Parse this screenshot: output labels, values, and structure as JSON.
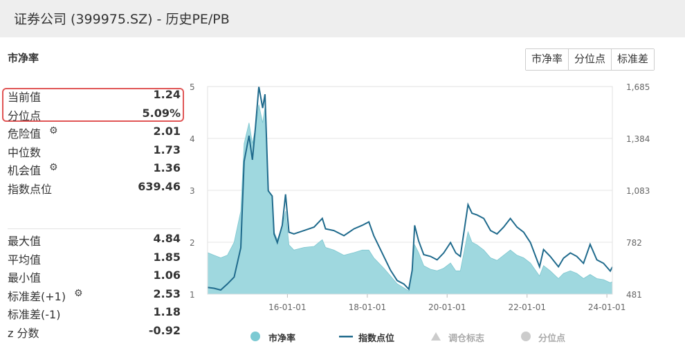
{
  "window_title": "证券公司 (399975.SZ) - 历史PE/PB",
  "section_title": "市净率",
  "tabs": [
    "市净率",
    "分位点",
    "标准差"
  ],
  "stats_top": [
    {
      "label": "当前值",
      "value": "1.24",
      "gear": false
    },
    {
      "label": "分位点",
      "value": "5.09%",
      "gear": false
    },
    {
      "label": "危险值",
      "value": "2.01",
      "gear": true
    },
    {
      "label": "中位数",
      "value": "1.73",
      "gear": false
    },
    {
      "label": "机会值",
      "value": "1.36",
      "gear": true
    },
    {
      "label": "指数点位",
      "value": "639.46",
      "gear": false
    }
  ],
  "stats_bottom": [
    {
      "label": "最大值",
      "value": "4.84",
      "gear": false
    },
    {
      "label": "平均值",
      "value": "1.85",
      "gear": false
    },
    {
      "label": "最小值",
      "value": "1.06",
      "gear": false
    },
    {
      "label": "标准差(+1)",
      "value": "2.53",
      "gear": true
    },
    {
      "label": "标准差(-1)",
      "value": "1.18",
      "gear": false
    },
    {
      "label": "z 分数",
      "value": "-0.92",
      "gear": false
    }
  ],
  "chart_data": {
    "type": "area",
    "x_tick_labels": [
      "16-01-01",
      "18-01-01",
      "20-01-01",
      "22-01-01",
      "24-01-01"
    ],
    "y_left_ticks": [
      1,
      2,
      3,
      4,
      5
    ],
    "y_right_ticks": [
      "481",
      "782",
      "1,083",
      "1,384",
      "1,685"
    ],
    "y_left_range": [
      1,
      5
    ],
    "y_right_range": [
      481,
      1685
    ],
    "x_range": [
      "2014-01-01",
      "2024-02-20"
    ],
    "legend": [
      "市净率",
      "指数点位",
      "调仓标志",
      "分位点"
    ],
    "colors": {
      "pb_fill": "#9fd8df",
      "index_line": "#1f6a8c",
      "inactive": "#cccccc"
    },
    "series": [
      {
        "name": "市净率",
        "points": [
          [
            "2014-01-01",
            1.8
          ],
          [
            "2014-03-01",
            1.75
          ],
          [
            "2014-05-01",
            1.7
          ],
          [
            "2014-07-01",
            1.75
          ],
          [
            "2014-09-01",
            2.0
          ],
          [
            "2014-11-01",
            2.6
          ],
          [
            "2014-12-01",
            3.9
          ],
          [
            "2015-01-15",
            4.3
          ],
          [
            "2015-02-15",
            3.9
          ],
          [
            "2015-03-15",
            4.2
          ],
          [
            "2015-04-15",
            4.65
          ],
          [
            "2015-05-20",
            4.3
          ],
          [
            "2015-06-10",
            4.6
          ],
          [
            "2015-07-10",
            3.0
          ],
          [
            "2015-08-15",
            2.9
          ],
          [
            "2015-09-01",
            2.2
          ],
          [
            "2015-10-01",
            2.05
          ],
          [
            "2015-11-15",
            2.3
          ],
          [
            "2015-12-15",
            2.6
          ],
          [
            "2016-01-15",
            1.95
          ],
          [
            "2016-03-01",
            1.85
          ],
          [
            "2016-06-01",
            1.9
          ],
          [
            "2016-09-01",
            1.92
          ],
          [
            "2016-11-15",
            2.05
          ],
          [
            "2016-12-15",
            1.9
          ],
          [
            "2017-03-01",
            1.85
          ],
          [
            "2017-06-01",
            1.75
          ],
          [
            "2017-09-01",
            1.8
          ],
          [
            "2017-11-15",
            1.85
          ],
          [
            "2018-01-15",
            1.85
          ],
          [
            "2018-03-01",
            1.7
          ],
          [
            "2018-06-01",
            1.5
          ],
          [
            "2018-08-01",
            1.35
          ],
          [
            "2018-10-01",
            1.2
          ],
          [
            "2018-12-01",
            1.12
          ],
          [
            "2019-01-15",
            1.06
          ],
          [
            "2019-02-15",
            1.5
          ],
          [
            "2019-03-10",
            1.95
          ],
          [
            "2019-04-15",
            1.8
          ],
          [
            "2019-06-01",
            1.55
          ],
          [
            "2019-08-01",
            1.48
          ],
          [
            "2019-10-01",
            1.45
          ],
          [
            "2019-12-01",
            1.5
          ],
          [
            "2020-02-01",
            1.6
          ],
          [
            "2020-03-20",
            1.45
          ],
          [
            "2020-05-01",
            1.45
          ],
          [
            "2020-07-10",
            2.2
          ],
          [
            "2020-08-15",
            2.0
          ],
          [
            "2020-10-01",
            1.95
          ],
          [
            "2020-12-01",
            1.85
          ],
          [
            "2021-02-01",
            1.7
          ],
          [
            "2021-04-01",
            1.65
          ],
          [
            "2021-06-01",
            1.75
          ],
          [
            "2021-08-01",
            1.85
          ],
          [
            "2021-10-01",
            1.75
          ],
          [
            "2021-12-01",
            1.7
          ],
          [
            "2022-02-01",
            1.6
          ],
          [
            "2022-04-25",
            1.35
          ],
          [
            "2022-06-01",
            1.55
          ],
          [
            "2022-08-01",
            1.45
          ],
          [
            "2022-10-15",
            1.3
          ],
          [
            "2022-12-01",
            1.4
          ],
          [
            "2023-02-01",
            1.45
          ],
          [
            "2023-04-01",
            1.4
          ],
          [
            "2023-06-01",
            1.3
          ],
          [
            "2023-08-01",
            1.38
          ],
          [
            "2023-10-01",
            1.3
          ],
          [
            "2023-12-01",
            1.28
          ],
          [
            "2024-02-01",
            1.22
          ],
          [
            "2024-02-20",
            1.24
          ]
        ]
      },
      {
        "name": "指数点位",
        "points": [
          [
            "2014-01-01",
            520
          ],
          [
            "2014-03-01",
            515
          ],
          [
            "2014-05-01",
            505
          ],
          [
            "2014-07-01",
            540
          ],
          [
            "2014-09-01",
            580
          ],
          [
            "2014-11-01",
            750
          ],
          [
            "2014-12-01",
            1250
          ],
          [
            "2015-01-15",
            1400
          ],
          [
            "2015-02-15",
            1260
          ],
          [
            "2015-03-15",
            1450
          ],
          [
            "2015-04-15",
            1685
          ],
          [
            "2015-05-20",
            1560
          ],
          [
            "2015-06-10",
            1640
          ],
          [
            "2015-07-10",
            1080
          ],
          [
            "2015-08-15",
            1050
          ],
          [
            "2015-09-01",
            830
          ],
          [
            "2015-10-01",
            780
          ],
          [
            "2015-11-15",
            880
          ],
          [
            "2015-12-15",
            1060
          ],
          [
            "2016-01-15",
            840
          ],
          [
            "2016-03-01",
            830
          ],
          [
            "2016-06-01",
            850
          ],
          [
            "2016-09-01",
            870
          ],
          [
            "2016-11-15",
            920
          ],
          [
            "2016-12-15",
            860
          ],
          [
            "2017-03-01",
            850
          ],
          [
            "2017-06-01",
            820
          ],
          [
            "2017-09-01",
            860
          ],
          [
            "2017-11-15",
            880
          ],
          [
            "2018-01-15",
            900
          ],
          [
            "2018-03-01",
            820
          ],
          [
            "2018-06-01",
            700
          ],
          [
            "2018-08-01",
            620
          ],
          [
            "2018-10-01",
            560
          ],
          [
            "2018-12-01",
            540
          ],
          [
            "2019-01-15",
            510
          ],
          [
            "2019-02-15",
            620
          ],
          [
            "2019-03-10",
            880
          ],
          [
            "2019-04-15",
            790
          ],
          [
            "2019-06-01",
            710
          ],
          [
            "2019-08-01",
            700
          ],
          [
            "2019-10-01",
            680
          ],
          [
            "2019-12-01",
            720
          ],
          [
            "2020-02-01",
            780
          ],
          [
            "2020-03-20",
            720
          ],
          [
            "2020-05-01",
            700
          ],
          [
            "2020-07-10",
            1000
          ],
          [
            "2020-08-15",
            950
          ],
          [
            "2020-10-01",
            940
          ],
          [
            "2020-12-01",
            920
          ],
          [
            "2021-02-01",
            850
          ],
          [
            "2021-04-01",
            830
          ],
          [
            "2021-06-01",
            870
          ],
          [
            "2021-08-01",
            920
          ],
          [
            "2021-10-01",
            870
          ],
          [
            "2021-12-01",
            840
          ],
          [
            "2022-02-01",
            780
          ],
          [
            "2022-04-25",
            640
          ],
          [
            "2022-06-01",
            740
          ],
          [
            "2022-08-01",
            700
          ],
          [
            "2022-10-15",
            640
          ],
          [
            "2022-12-01",
            690
          ],
          [
            "2023-02-01",
            720
          ],
          [
            "2023-04-01",
            700
          ],
          [
            "2023-06-01",
            660
          ],
          [
            "2023-08-01",
            770
          ],
          [
            "2023-10-01",
            680
          ],
          [
            "2023-12-01",
            660
          ],
          [
            "2024-02-01",
            615
          ],
          [
            "2024-02-20",
            639
          ]
        ]
      }
    ]
  }
}
